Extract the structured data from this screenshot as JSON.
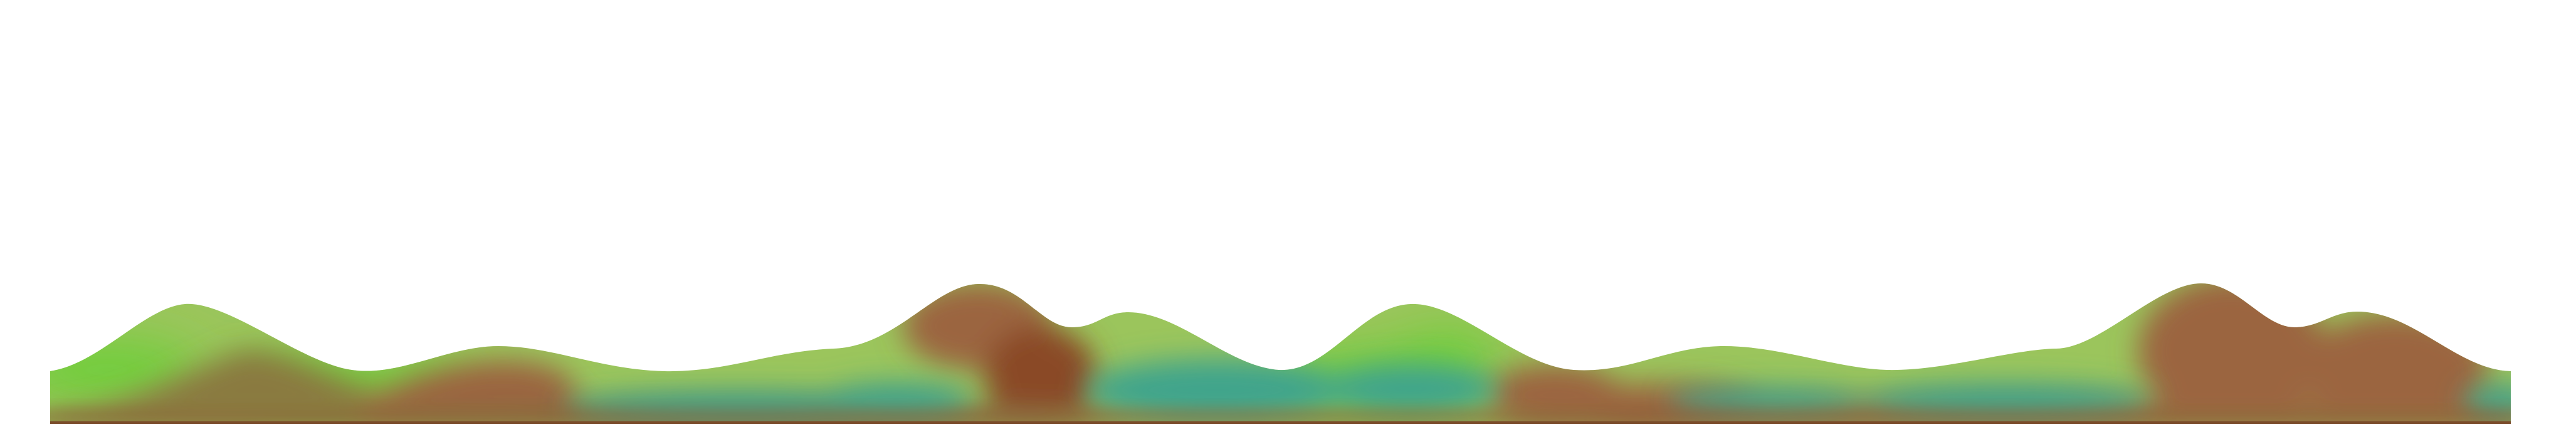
{
  "scene": {
    "colors": {
      "background": "#ffffff",
      "grass_light": "#9bc55c",
      "grass_bright": "#6ccf38",
      "soil_olive": "#8a7a40",
      "soil_brown": "#9b6540",
      "soil_dark": "#8a4a28",
      "water_teal": "#3fa48c",
      "baseline": "#7a4c2a"
    },
    "layers": [
      {
        "name": "grass-top-layer"
      },
      {
        "name": "soil-layer"
      },
      {
        "name": "water-layer"
      },
      {
        "name": "ground-baseline"
      }
    ]
  }
}
